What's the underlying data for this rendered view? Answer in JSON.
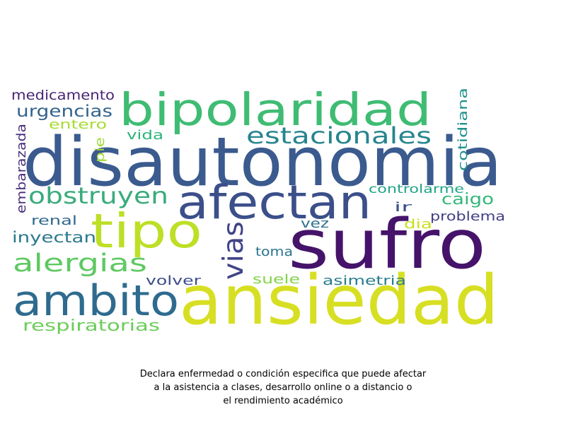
{
  "caption": {
    "line1": "Declara enfermedad o condición especifica que puede afectar",
    "line2": "a la asistencia a clases, desarrollo online o a distancio o",
    "line3": "el rendimiento académico"
  },
  "words": [
    {
      "text": "disautonomia",
      "color": "#3b5b8f"
    },
    {
      "text": "sufro",
      "color": "#45136a"
    },
    {
      "text": "ansiedad",
      "color": "#d7df23"
    },
    {
      "text": "bipolaridad",
      "color": "#3fbc73"
    },
    {
      "text": "afectan",
      "color": "#3b4f8a"
    },
    {
      "text": "tipo",
      "color": "#bddf26"
    },
    {
      "text": "ambito",
      "color": "#2e6b8e"
    },
    {
      "text": "estacionales",
      "color": "#25858e"
    },
    {
      "text": "obstruyen",
      "color": "#3aab7c"
    },
    {
      "text": "alergias",
      "color": "#5ec962"
    },
    {
      "text": "vias",
      "color": "#414487"
    },
    {
      "text": "urgencias",
      "color": "#33638d"
    },
    {
      "text": "medicamento",
      "color": "#482475"
    },
    {
      "text": "respiratorias",
      "color": "#6ccd5a"
    },
    {
      "text": "inyectan",
      "color": "#2a788e"
    },
    {
      "text": "embarazada",
      "color": "#472d7b"
    },
    {
      "text": "entero",
      "color": "#a8db34"
    },
    {
      "text": "pie",
      "color": "#a2da37"
    },
    {
      "text": "vida",
      "color": "#2db27d"
    },
    {
      "text": "cotidiana",
      "color": "#21918c"
    },
    {
      "text": "controlarme",
      "color": "#20a386"
    },
    {
      "text": "caigo",
      "color": "#35b779"
    },
    {
      "text": "ir",
      "color": "#3a548c"
    },
    {
      "text": "problema",
      "color": "#433e85"
    },
    {
      "text": "renal",
      "color": "#31688e"
    },
    {
      "text": "vez",
      "color": "#2c728e"
    },
    {
      "text": "dia",
      "color": "#c8e020"
    },
    {
      "text": "toma",
      "color": "#2b748e"
    },
    {
      "text": "suele",
      "color": "#84d44b"
    },
    {
      "text": "asimetria",
      "color": "#287d8e"
    },
    {
      "text": "volver",
      "color": "#3e4c8a"
    }
  ]
}
